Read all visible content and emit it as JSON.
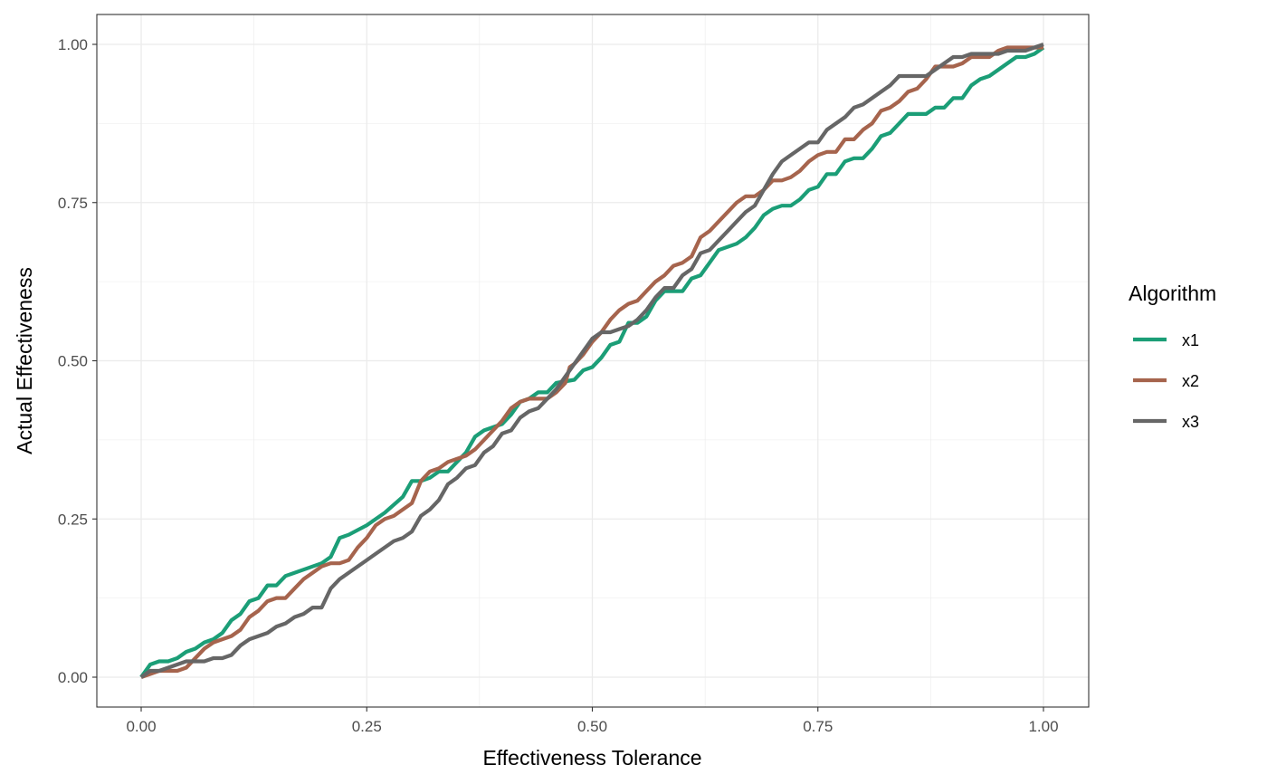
{
  "chart_data": {
    "type": "line",
    "title": "",
    "xlabel": "Effectiveness Tolerance",
    "ylabel": "Actual Effectiveness",
    "xlim": [
      0,
      1
    ],
    "ylim": [
      0,
      1
    ],
    "x_ticks": [
      "0.00",
      "0.25",
      "0.50",
      "0.75",
      "1.00"
    ],
    "y_ticks": [
      "0.00",
      "0.25",
      "0.50",
      "0.75",
      "1.00"
    ],
    "grid": true,
    "legend": {
      "title": "Algorithm",
      "placement": "right"
    },
    "series": [
      {
        "name": "x1",
        "color": "#1b9e77",
        "points": [
          [
            0,
            0
          ],
          [
            0.01,
            0.02
          ],
          [
            0.02,
            0.025
          ],
          [
            0.03,
            0.025
          ],
          [
            0.04,
            0.03
          ],
          [
            0.05,
            0.04
          ],
          [
            0.06,
            0.045
          ],
          [
            0.07,
            0.055
          ],
          [
            0.08,
            0.06
          ],
          [
            0.09,
            0.07
          ],
          [
            0.1,
            0.09
          ],
          [
            0.11,
            0.1
          ],
          [
            0.12,
            0.12
          ],
          [
            0.13,
            0.125
          ],
          [
            0.14,
            0.145
          ],
          [
            0.15,
            0.145
          ],
          [
            0.16,
            0.16
          ],
          [
            0.18,
            0.17
          ],
          [
            0.2,
            0.18
          ],
          [
            0.21,
            0.19
          ],
          [
            0.22,
            0.22
          ],
          [
            0.23,
            0.225
          ],
          [
            0.25,
            0.24
          ],
          [
            0.27,
            0.26
          ],
          [
            0.29,
            0.285
          ],
          [
            0.3,
            0.31
          ],
          [
            0.31,
            0.31
          ],
          [
            0.32,
            0.315
          ],
          [
            0.33,
            0.325
          ],
          [
            0.34,
            0.325
          ],
          [
            0.35,
            0.34
          ],
          [
            0.36,
            0.355
          ],
          [
            0.37,
            0.38
          ],
          [
            0.38,
            0.39
          ],
          [
            0.4,
            0.4
          ],
          [
            0.41,
            0.415
          ],
          [
            0.42,
            0.435
          ],
          [
            0.43,
            0.44
          ],
          [
            0.44,
            0.45
          ],
          [
            0.45,
            0.45
          ],
          [
            0.46,
            0.465
          ],
          [
            0.48,
            0.47
          ],
          [
            0.49,
            0.485
          ],
          [
            0.5,
            0.49
          ],
          [
            0.51,
            0.505
          ],
          [
            0.52,
            0.525
          ],
          [
            0.53,
            0.53
          ],
          [
            0.54,
            0.56
          ],
          [
            0.55,
            0.56
          ],
          [
            0.56,
            0.57
          ],
          [
            0.57,
            0.595
          ],
          [
            0.58,
            0.61
          ],
          [
            0.6,
            0.61
          ],
          [
            0.61,
            0.63
          ],
          [
            0.62,
            0.635
          ],
          [
            0.63,
            0.655
          ],
          [
            0.64,
            0.675
          ],
          [
            0.66,
            0.685
          ],
          [
            0.67,
            0.695
          ],
          [
            0.68,
            0.71
          ],
          [
            0.69,
            0.73
          ],
          [
            0.7,
            0.74
          ],
          [
            0.71,
            0.745
          ],
          [
            0.72,
            0.745
          ],
          [
            0.73,
            0.755
          ],
          [
            0.74,
            0.77
          ],
          [
            0.75,
            0.775
          ],
          [
            0.76,
            0.795
          ],
          [
            0.77,
            0.795
          ],
          [
            0.78,
            0.815
          ],
          [
            0.79,
            0.82
          ],
          [
            0.8,
            0.82
          ],
          [
            0.81,
            0.835
          ],
          [
            0.82,
            0.855
          ],
          [
            0.83,
            0.86
          ],
          [
            0.84,
            0.875
          ],
          [
            0.85,
            0.89
          ],
          [
            0.86,
            0.89
          ],
          [
            0.87,
            0.89
          ],
          [
            0.88,
            0.9
          ],
          [
            0.89,
            0.9
          ],
          [
            0.9,
            0.915
          ],
          [
            0.91,
            0.915
          ],
          [
            0.92,
            0.935
          ],
          [
            0.93,
            0.945
          ],
          [
            0.94,
            0.95
          ],
          [
            0.95,
            0.96
          ],
          [
            0.96,
            0.97
          ],
          [
            0.97,
            0.98
          ],
          [
            0.98,
            0.98
          ],
          [
            0.99,
            0.985
          ],
          [
            1.0,
            0.995
          ]
        ]
      },
      {
        "name": "x2",
        "color": "#a6644d",
        "points": [
          [
            0,
            0
          ],
          [
            0.01,
            0.005
          ],
          [
            0.02,
            0.01
          ],
          [
            0.03,
            0.01
          ],
          [
            0.04,
            0.01
          ],
          [
            0.05,
            0.015
          ],
          [
            0.06,
            0.03
          ],
          [
            0.07,
            0.045
          ],
          [
            0.08,
            0.055
          ],
          [
            0.09,
            0.06
          ],
          [
            0.1,
            0.065
          ],
          [
            0.11,
            0.075
          ],
          [
            0.12,
            0.095
          ],
          [
            0.13,
            0.105
          ],
          [
            0.14,
            0.12
          ],
          [
            0.15,
            0.125
          ],
          [
            0.16,
            0.125
          ],
          [
            0.17,
            0.14
          ],
          [
            0.18,
            0.155
          ],
          [
            0.2,
            0.175
          ],
          [
            0.21,
            0.18
          ],
          [
            0.22,
            0.18
          ],
          [
            0.23,
            0.185
          ],
          [
            0.24,
            0.205
          ],
          [
            0.25,
            0.22
          ],
          [
            0.26,
            0.24
          ],
          [
            0.27,
            0.25
          ],
          [
            0.28,
            0.255
          ],
          [
            0.29,
            0.265
          ],
          [
            0.3,
            0.275
          ],
          [
            0.31,
            0.31
          ],
          [
            0.32,
            0.325
          ],
          [
            0.33,
            0.33
          ],
          [
            0.34,
            0.34
          ],
          [
            0.35,
            0.345
          ],
          [
            0.36,
            0.35
          ],
          [
            0.37,
            0.36
          ],
          [
            0.38,
            0.375
          ],
          [
            0.39,
            0.39
          ],
          [
            0.4,
            0.405
          ],
          [
            0.41,
            0.425
          ],
          [
            0.42,
            0.435
          ],
          [
            0.43,
            0.44
          ],
          [
            0.44,
            0.44
          ],
          [
            0.45,
            0.44
          ],
          [
            0.46,
            0.45
          ],
          [
            0.47,
            0.465
          ],
          [
            0.475,
            0.49
          ],
          [
            0.48,
            0.495
          ],
          [
            0.49,
            0.51
          ],
          [
            0.5,
            0.53
          ],
          [
            0.51,
            0.545
          ],
          [
            0.52,
            0.565
          ],
          [
            0.53,
            0.58
          ],
          [
            0.54,
            0.59
          ],
          [
            0.55,
            0.595
          ],
          [
            0.56,
            0.61
          ],
          [
            0.57,
            0.625
          ],
          [
            0.58,
            0.635
          ],
          [
            0.59,
            0.65
          ],
          [
            0.6,
            0.655
          ],
          [
            0.61,
            0.665
          ],
          [
            0.62,
            0.695
          ],
          [
            0.63,
            0.705
          ],
          [
            0.64,
            0.72
          ],
          [
            0.65,
            0.735
          ],
          [
            0.66,
            0.75
          ],
          [
            0.67,
            0.76
          ],
          [
            0.68,
            0.76
          ],
          [
            0.69,
            0.77
          ],
          [
            0.7,
            0.785
          ],
          [
            0.71,
            0.785
          ],
          [
            0.72,
            0.79
          ],
          [
            0.73,
            0.8
          ],
          [
            0.74,
            0.815
          ],
          [
            0.75,
            0.825
          ],
          [
            0.76,
            0.83
          ],
          [
            0.77,
            0.83
          ],
          [
            0.78,
            0.85
          ],
          [
            0.79,
            0.85
          ],
          [
            0.8,
            0.865
          ],
          [
            0.81,
            0.875
          ],
          [
            0.82,
            0.895
          ],
          [
            0.83,
            0.9
          ],
          [
            0.84,
            0.91
          ],
          [
            0.85,
            0.925
          ],
          [
            0.86,
            0.93
          ],
          [
            0.87,
            0.945
          ],
          [
            0.88,
            0.965
          ],
          [
            0.89,
            0.965
          ],
          [
            0.9,
            0.965
          ],
          [
            0.91,
            0.97
          ],
          [
            0.92,
            0.98
          ],
          [
            0.93,
            0.98
          ],
          [
            0.94,
            0.98
          ],
          [
            0.95,
            0.99
          ],
          [
            0.96,
            0.995
          ],
          [
            0.97,
            0.995
          ],
          [
            0.98,
            0.995
          ],
          [
            0.99,
            0.995
          ],
          [
            1.0,
            0.995
          ]
        ]
      },
      {
        "name": "x3",
        "color": "#666666",
        "points": [
          [
            0,
            0
          ],
          [
            0.01,
            0.01
          ],
          [
            0.02,
            0.01
          ],
          [
            0.03,
            0.015
          ],
          [
            0.04,
            0.02
          ],
          [
            0.05,
            0.025
          ],
          [
            0.06,
            0.025
          ],
          [
            0.07,
            0.025
          ],
          [
            0.08,
            0.03
          ],
          [
            0.09,
            0.03
          ],
          [
            0.1,
            0.035
          ],
          [
            0.11,
            0.05
          ],
          [
            0.12,
            0.06
          ],
          [
            0.13,
            0.065
          ],
          [
            0.14,
            0.07
          ],
          [
            0.15,
            0.08
          ],
          [
            0.16,
            0.085
          ],
          [
            0.17,
            0.095
          ],
          [
            0.18,
            0.1
          ],
          [
            0.19,
            0.11
          ],
          [
            0.2,
            0.11
          ],
          [
            0.21,
            0.14
          ],
          [
            0.22,
            0.155
          ],
          [
            0.23,
            0.165
          ],
          [
            0.24,
            0.175
          ],
          [
            0.25,
            0.185
          ],
          [
            0.26,
            0.195
          ],
          [
            0.27,
            0.205
          ],
          [
            0.28,
            0.215
          ],
          [
            0.29,
            0.22
          ],
          [
            0.3,
            0.23
          ],
          [
            0.31,
            0.255
          ],
          [
            0.32,
            0.265
          ],
          [
            0.33,
            0.28
          ],
          [
            0.34,
            0.305
          ],
          [
            0.35,
            0.315
          ],
          [
            0.36,
            0.33
          ],
          [
            0.37,
            0.335
          ],
          [
            0.38,
            0.355
          ],
          [
            0.39,
            0.365
          ],
          [
            0.4,
            0.385
          ],
          [
            0.41,
            0.39
          ],
          [
            0.42,
            0.41
          ],
          [
            0.43,
            0.42
          ],
          [
            0.44,
            0.425
          ],
          [
            0.45,
            0.44
          ],
          [
            0.46,
            0.455
          ],
          [
            0.47,
            0.475
          ],
          [
            0.48,
            0.495
          ],
          [
            0.49,
            0.515
          ],
          [
            0.5,
            0.535
          ],
          [
            0.51,
            0.545
          ],
          [
            0.52,
            0.545
          ],
          [
            0.53,
            0.55
          ],
          [
            0.54,
            0.555
          ],
          [
            0.55,
            0.565
          ],
          [
            0.56,
            0.58
          ],
          [
            0.57,
            0.6
          ],
          [
            0.58,
            0.615
          ],
          [
            0.59,
            0.615
          ],
          [
            0.6,
            0.635
          ],
          [
            0.61,
            0.645
          ],
          [
            0.62,
            0.67
          ],
          [
            0.63,
            0.675
          ],
          [
            0.64,
            0.69
          ],
          [
            0.65,
            0.705
          ],
          [
            0.66,
            0.72
          ],
          [
            0.67,
            0.735
          ],
          [
            0.68,
            0.745
          ],
          [
            0.69,
            0.77
          ],
          [
            0.7,
            0.795
          ],
          [
            0.71,
            0.815
          ],
          [
            0.72,
            0.825
          ],
          [
            0.73,
            0.835
          ],
          [
            0.74,
            0.845
          ],
          [
            0.75,
            0.845
          ],
          [
            0.76,
            0.865
          ],
          [
            0.77,
            0.875
          ],
          [
            0.78,
            0.885
          ],
          [
            0.79,
            0.9
          ],
          [
            0.8,
            0.905
          ],
          [
            0.81,
            0.915
          ],
          [
            0.82,
            0.925
          ],
          [
            0.83,
            0.935
          ],
          [
            0.84,
            0.95
          ],
          [
            0.85,
            0.95
          ],
          [
            0.86,
            0.95
          ],
          [
            0.87,
            0.95
          ],
          [
            0.88,
            0.96
          ],
          [
            0.89,
            0.97
          ],
          [
            0.9,
            0.98
          ],
          [
            0.91,
            0.98
          ],
          [
            0.92,
            0.985
          ],
          [
            0.93,
            0.985
          ],
          [
            0.94,
            0.985
          ],
          [
            0.95,
            0.985
          ],
          [
            0.96,
            0.99
          ],
          [
            0.97,
            0.99
          ],
          [
            0.98,
            0.99
          ],
          [
            0.99,
            0.995
          ],
          [
            1.0,
            1.0
          ]
        ]
      }
    ]
  }
}
